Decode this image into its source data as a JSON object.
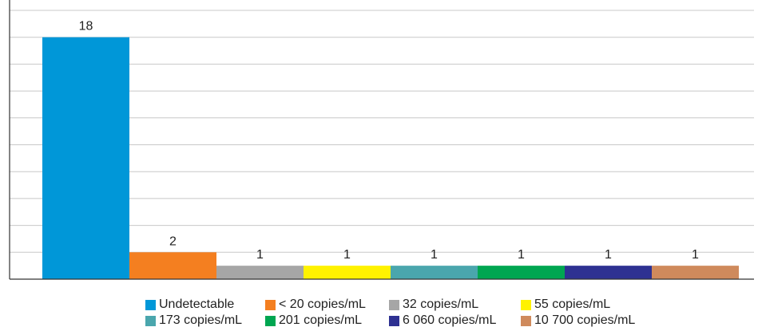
{
  "chart_data": {
    "type": "bar",
    "categories": [
      "Undetectable",
      "< 20 copies/mL",
      "32 copies/mL",
      "55 copies/mL",
      "173 copies/mL",
      "201 copies/mL",
      "6 060 copies/mL",
      "10 700 copies/mL"
    ],
    "values": [
      18,
      2,
      1,
      1,
      1,
      1,
      1,
      1
    ],
    "colors": [
      "#0097d8",
      "#f47f20",
      "#a6a6a6",
      "#fff200",
      "#4aa6ad",
      "#00a651",
      "#2e3192",
      "#cf8a5c"
    ],
    "data_labels": [
      "18",
      "2",
      "1",
      "1",
      "1",
      "1",
      "1",
      "1"
    ],
    "title": "",
    "xlabel": "",
    "ylabel": "",
    "ylim": [
      0,
      20
    ],
    "grid": true,
    "legend_position": "bottom"
  }
}
